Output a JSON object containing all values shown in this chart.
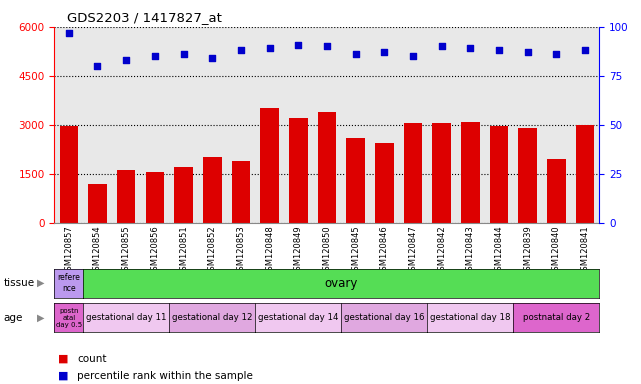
{
  "title": "GDS2203 / 1417827_at",
  "samples": [
    "GSM120857",
    "GSM120854",
    "GSM120855",
    "GSM120856",
    "GSM120851",
    "GSM120852",
    "GSM120853",
    "GSM120848",
    "GSM120849",
    "GSM120850",
    "GSM120845",
    "GSM120846",
    "GSM120847",
    "GSM120842",
    "GSM120843",
    "GSM120844",
    "GSM120839",
    "GSM120840",
    "GSM120841"
  ],
  "counts": [
    2950,
    1200,
    1600,
    1550,
    1700,
    2000,
    1900,
    3500,
    3200,
    3400,
    2600,
    2450,
    3050,
    3050,
    3100,
    2950,
    2900,
    1950,
    2980
  ],
  "percentiles": [
    97,
    80,
    83,
    85,
    86,
    84,
    88,
    89,
    91,
    90,
    86,
    87,
    85,
    90,
    89,
    88,
    87,
    86,
    88
  ],
  "ylim_left": [
    0,
    6000
  ],
  "ylim_right": [
    0,
    100
  ],
  "yticks_left": [
    0,
    1500,
    3000,
    4500,
    6000
  ],
  "yticks_right": [
    0,
    25,
    50,
    75,
    100
  ],
  "bar_color": "#dd0000",
  "dot_color": "#0000cc",
  "tissue_row": {
    "label": "tissue",
    "first_cell_text": "refere\nnce",
    "first_cell_color": "#bb99ee",
    "main_text": "ovary",
    "main_color": "#55dd55"
  },
  "age_row": {
    "label": "age",
    "first_cell_text": "postn\natal\nday 0.5",
    "first_cell_color": "#dd66cc",
    "groups": [
      {
        "text": "gestational day 11",
        "color": "#f0c8f0",
        "count": 3
      },
      {
        "text": "gestational day 12",
        "color": "#e0a8e0",
        "count": 3
      },
      {
        "text": "gestational day 14",
        "color": "#f0c8f0",
        "count": 3
      },
      {
        "text": "gestational day 16",
        "color": "#e0a8e0",
        "count": 3
      },
      {
        "text": "gestational day 18",
        "color": "#f0c8f0",
        "count": 3
      },
      {
        "text": "postnatal day 2",
        "color": "#dd66cc",
        "count": 3
      }
    ]
  },
  "legend": [
    {
      "color": "#dd0000",
      "label": "count"
    },
    {
      "color": "#0000cc",
      "label": "percentile rank within the sample"
    }
  ],
  "grid_color": "#888888",
  "bg_color": "#e8e8e8",
  "spine_bottom_color": "#888888"
}
